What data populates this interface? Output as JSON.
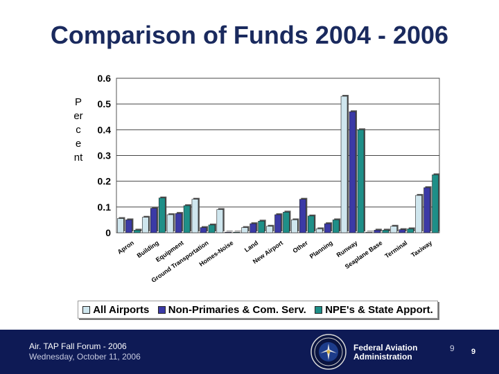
{
  "slide": {
    "title": "Comparison of Funds 2004 - 2006"
  },
  "footer": {
    "forum": "Air. TAP Fall Forum - 2006",
    "date": "Wednesday, October 11, 2006",
    "agency": "Federal Aviation\nAdministration",
    "page_small": "9",
    "page_main": "9"
  },
  "colors": {
    "all_airports": "#cfe6ee",
    "non_primaries": "#3b3aa6",
    "npe_state": "#1e8f88",
    "title": "#1a2a5e",
    "footer_bg": "#0e1a55"
  },
  "chart_data": {
    "type": "bar",
    "ylabel": "Percent",
    "ylim": [
      0,
      0.6
    ],
    "yticks": [
      0,
      0.1,
      0.2,
      0.3,
      0.4,
      0.5,
      0.6
    ],
    "ytick_labels": [
      "0",
      "0.1",
      "0.2",
      "0.3",
      "0.4",
      "0.5",
      "0.6"
    ],
    "grid": true,
    "legend_position": "bottom",
    "categories": [
      "Apron",
      "Building",
      "Equipment",
      "Ground Transportation",
      "Homes-Noise",
      "Land",
      "New Airport",
      "Other",
      "Planning",
      "Runway",
      "Seaplane Base",
      "Terminal",
      "Taxiway"
    ],
    "series": [
      {
        "name": "All Airports",
        "values": [
          0.055,
          0.06,
          0.07,
          0.13,
          0.09,
          0.02,
          0.025,
          0.05,
          0.015,
          0.53,
          0.002,
          0.025,
          0.145
        ]
      },
      {
        "name": "Non-Primaries & Com. Serv.",
        "values": [
          0.05,
          0.095,
          0.075,
          0.02,
          0.002,
          0.035,
          0.07,
          0.13,
          0.035,
          0.47,
          0.01,
          0.012,
          0.175
        ]
      },
      {
        "name": "NPE's & State Apport.",
        "values": [
          0.01,
          0.135,
          0.105,
          0.03,
          0.002,
          0.045,
          0.08,
          0.065,
          0.05,
          0.4,
          0.01,
          0.015,
          0.225
        ]
      }
    ]
  }
}
